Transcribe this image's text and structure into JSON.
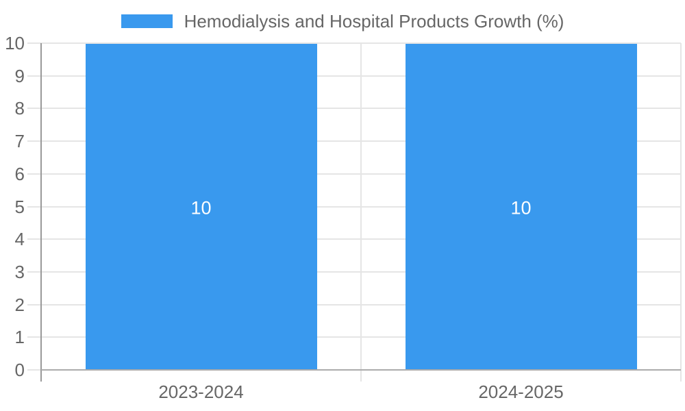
{
  "legend": {
    "label": "Hemodialysis and Hospital Products Growth (%)",
    "swatch_color": "#3999ee"
  },
  "colors": {
    "bar": "#3999ee",
    "grid": "#e5e5e5",
    "y_axis_line": "#999999",
    "x_axis_line": "#ababab",
    "tick_text": "#666666",
    "bar_label_text": "#ffffff",
    "background": "#ffffff"
  },
  "chart_data": {
    "type": "bar",
    "title": "Hemodialysis and Hospital Products Growth (%)",
    "categories": [
      "2023-2024",
      "2024-2025"
    ],
    "series": [
      {
        "name": "Hemodialysis and Hospital Products Growth (%)",
        "values": [
          10,
          10
        ],
        "color": "#3999ee"
      }
    ],
    "bar_value_labels": [
      "10",
      "10"
    ],
    "xlabel": "",
    "ylabel": "",
    "ylim": [
      0,
      10
    ],
    "y_ticks": [
      0,
      1,
      2,
      3,
      4,
      5,
      6,
      7,
      8,
      9,
      10
    ],
    "grid": true,
    "legend_position": "top"
  }
}
